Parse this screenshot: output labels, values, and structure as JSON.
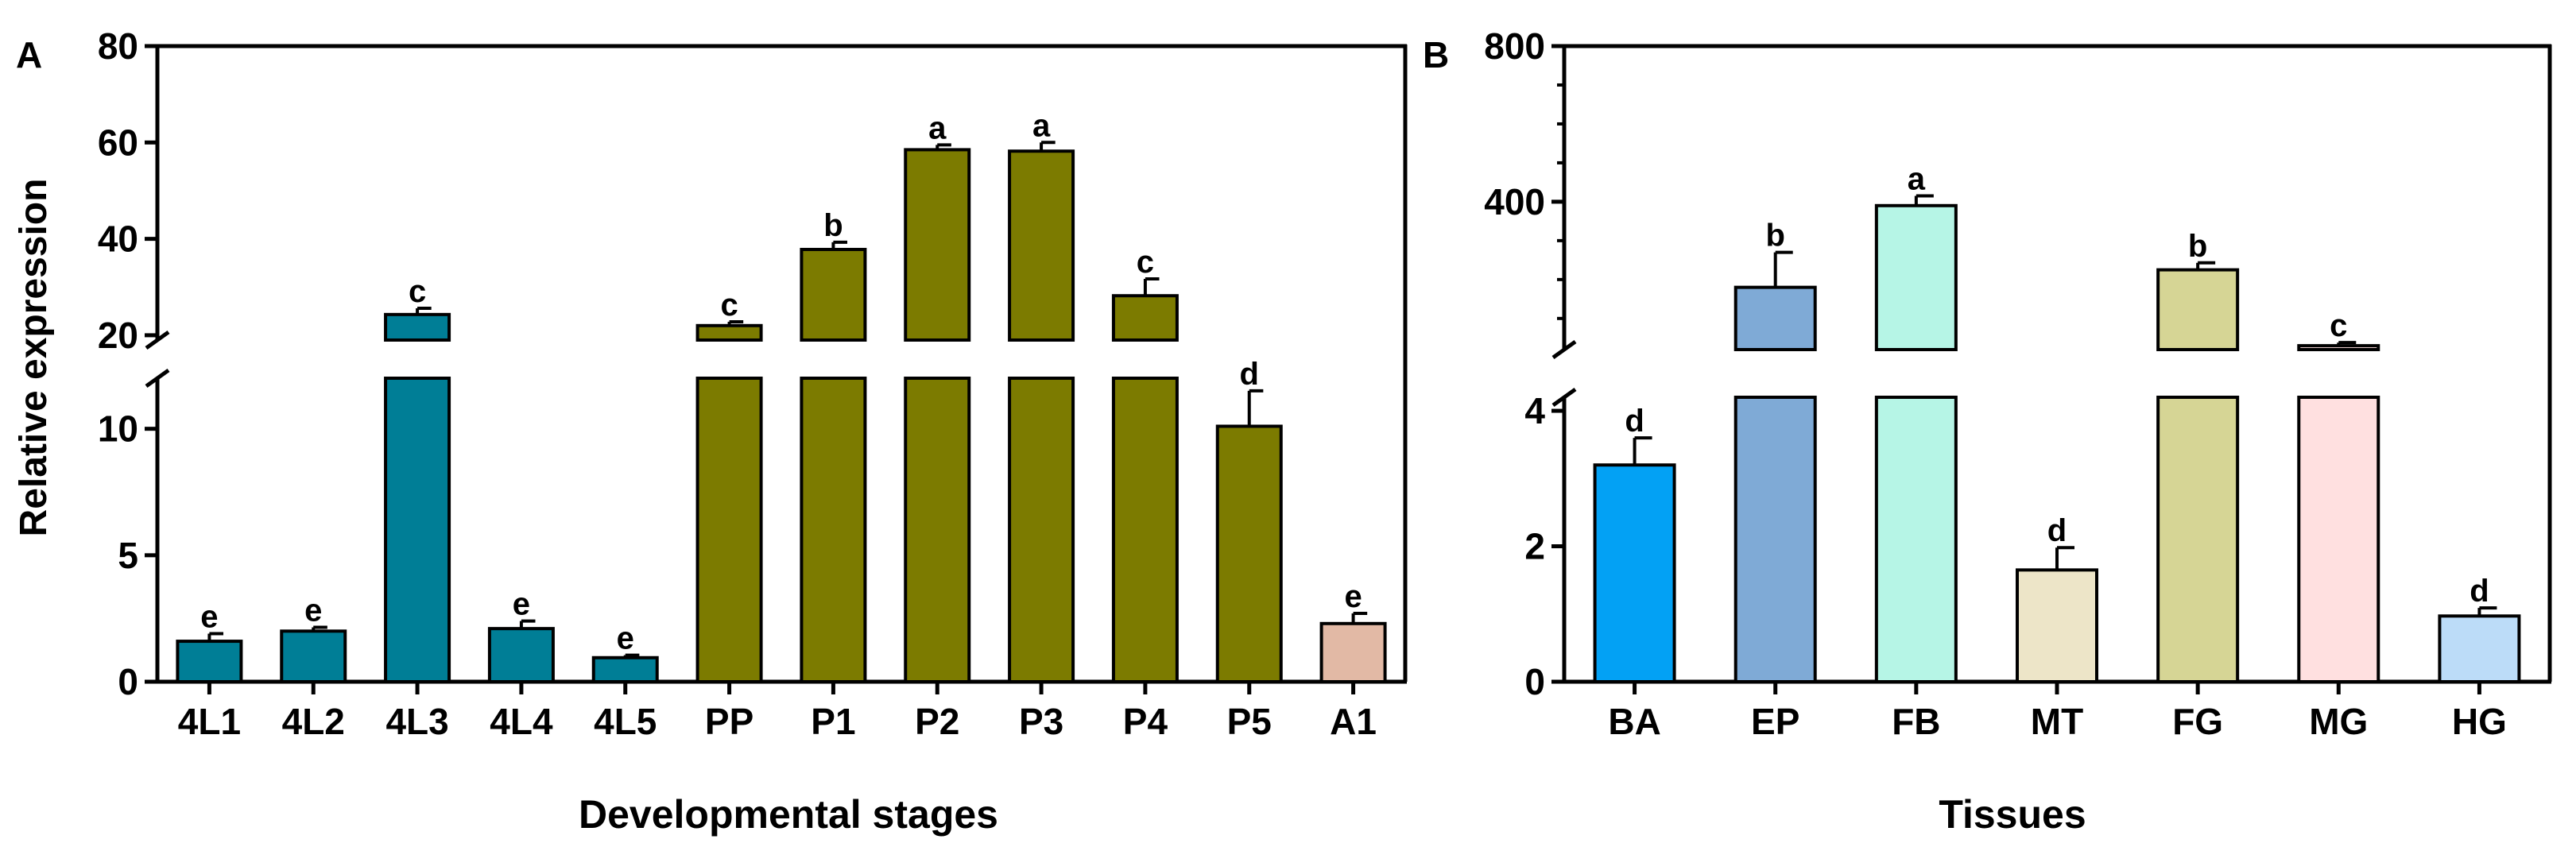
{
  "chart_data": [
    {
      "panel_label": "A",
      "type": "bar",
      "xlabel": "Developmental stages",
      "ylabel": "Relative expression",
      "axis_break": {
        "lower_range": [
          0,
          12
        ],
        "upper_range": [
          19,
          80
        ]
      },
      "y_ticks_lower": [
        "0",
        "5",
        "10"
      ],
      "y_tick_values_lower": [
        0,
        5,
        10
      ],
      "y_ticks_upper": [
        "20",
        "40",
        "60",
        "80"
      ],
      "y_tick_values_upper": [
        20,
        40,
        60,
        80
      ],
      "categories": [
        "4L1",
        "4L2",
        "4L3",
        "4L4",
        "4L5",
        "PP",
        "P1",
        "P2",
        "P3",
        "P4",
        "P5",
        "A1"
      ],
      "values": [
        1.6,
        2.0,
        24.3,
        2.1,
        0.95,
        22.0,
        37.8,
        58.5,
        58.2,
        28.2,
        10.1,
        2.3
      ],
      "errors": [
        0.3,
        0.15,
        1.3,
        0.3,
        0.1,
        0.8,
        1.5,
        1.0,
        1.8,
        3.5,
        1.4,
        0.4
      ],
      "sig_letters": [
        "e",
        "e",
        "c",
        "e",
        "e",
        "c",
        "b",
        "a",
        "a",
        "c",
        "d",
        "e"
      ],
      "colors": [
        "#007e96",
        "#007e96",
        "#007e96",
        "#007e96",
        "#007e96",
        "#7c7b00",
        "#7c7b00",
        "#7c7b00",
        "#7c7b00",
        "#7c7b00",
        "#7c7b00",
        "#e2b9a5"
      ]
    },
    {
      "panel_label": "B",
      "type": "bar",
      "xlabel": "Tissues",
      "ylabel": "",
      "axis_break": {
        "lower_range": [
          0,
          4.2
        ],
        "upper_range": [
          20,
          800
        ]
      },
      "y_ticks_lower": [
        "0",
        "2",
        "4"
      ],
      "y_tick_values_lower": [
        0,
        2,
        4
      ],
      "y_ticks_upper": [
        "400",
        "800"
      ],
      "y_tick_values_upper": [
        400,
        800
      ],
      "categories": [
        "BA",
        "EP",
        "FB",
        "MT",
        "FG",
        "MG",
        "HG"
      ],
      "values": [
        3.2,
        180,
        390,
        1.65,
        225,
        30,
        0.97
      ],
      "errors": [
        0.4,
        90,
        25,
        0.33,
        18,
        8,
        0.12
      ],
      "sig_letters": [
        "d",
        "b",
        "a",
        "d",
        "b",
        "c",
        "d"
      ],
      "colors": [
        "#03a1f4",
        "#7faad6",
        "#b6f5e6",
        "#ede5c8",
        "#d6d595",
        "#ffe0e0",
        "#bcdcf8"
      ]
    }
  ]
}
